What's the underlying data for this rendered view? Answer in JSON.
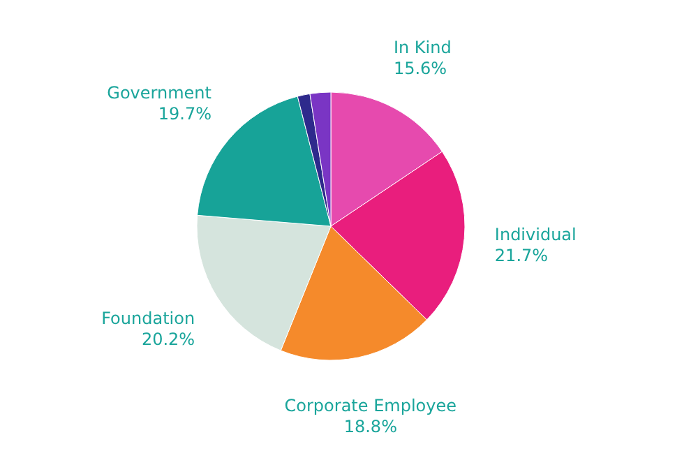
{
  "chart_data": {
    "type": "pie",
    "categories": [
      "In Kind",
      "Individual",
      "Corporate Employee",
      "Foundation",
      "Government",
      null,
      null
    ],
    "values": [
      15.6,
      21.7,
      18.8,
      20.2,
      19.7,
      1.5,
      2.5
    ],
    "colors": [
      "#e64aae",
      "#e91e7d",
      "#f58a2b",
      "#d5e4dd",
      "#17a398",
      "#2e2a8c",
      "#7a35c4"
    ],
    "value_labels": [
      "15.6%",
      "21.7%",
      "18.8%",
      "20.2%",
      "19.7%",
      null,
      null
    ]
  }
}
